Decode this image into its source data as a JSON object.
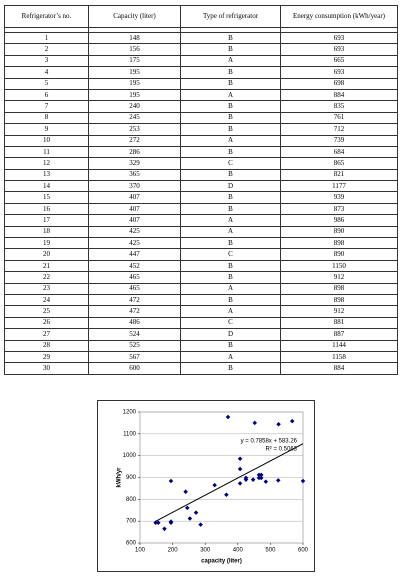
{
  "table": {
    "header": [
      "Refrigerator’s no.",
      "Capacity (liter)",
      "Type of refrigerator",
      "Energy consumption (kWh/year)"
    ],
    "rows": [
      [
        1,
        148,
        "B",
        693
      ],
      [
        2,
        156,
        "B",
        693
      ],
      [
        3,
        175,
        "A",
        665
      ],
      [
        4,
        195,
        "B",
        693
      ],
      [
        5,
        195,
        "B",
        698
      ],
      [
        6,
        195,
        "A",
        884
      ],
      [
        7,
        240,
        "B",
        835
      ],
      [
        8,
        245,
        "B",
        761
      ],
      [
        9,
        253,
        "B",
        712
      ],
      [
        10,
        272,
        "A",
        739
      ],
      [
        11,
        286,
        "B",
        684
      ],
      [
        12,
        329,
        "C",
        865
      ],
      [
        13,
        365,
        "B",
        821
      ],
      [
        14,
        370,
        "D",
        1177
      ],
      [
        15,
        407,
        "B",
        939
      ],
      [
        16,
        407,
        "B",
        873
      ],
      [
        17,
        407,
        "A",
        986
      ],
      [
        18,
        425,
        "A",
        890
      ],
      [
        19,
        425,
        "B",
        898
      ],
      [
        20,
        447,
        "C",
        890
      ],
      [
        21,
        452,
        "B",
        1150
      ],
      [
        22,
        465,
        "B",
        912
      ],
      [
        23,
        465,
        "A",
        898
      ],
      [
        24,
        472,
        "B",
        898
      ],
      [
        25,
        472,
        "A",
        912
      ],
      [
        26,
        486,
        "C",
        881
      ],
      [
        27,
        524,
        "D",
        887
      ],
      [
        28,
        525,
        "B",
        1144
      ],
      [
        29,
        567,
        "A",
        1158
      ],
      [
        30,
        600,
        "B",
        884
      ]
    ]
  },
  "chart_data": {
    "type": "scatter",
    "x_label": "capacity (liter)",
    "y_label": "kWh/yr",
    "xlim": [
      100,
      600
    ],
    "ylim": [
      600,
      1200
    ],
    "xticks": [
      100,
      200,
      300,
      400,
      500,
      600
    ],
    "yticks": [
      600,
      700,
      800,
      900,
      1000,
      1100,
      1200
    ],
    "grid": true,
    "color": "#00007f",
    "trendline": {
      "slope": 0.7858,
      "intercept": 583.26
    },
    "annotations": [
      "y = 0.7858x + 583.26",
      "R² = 0.5063"
    ]
  }
}
